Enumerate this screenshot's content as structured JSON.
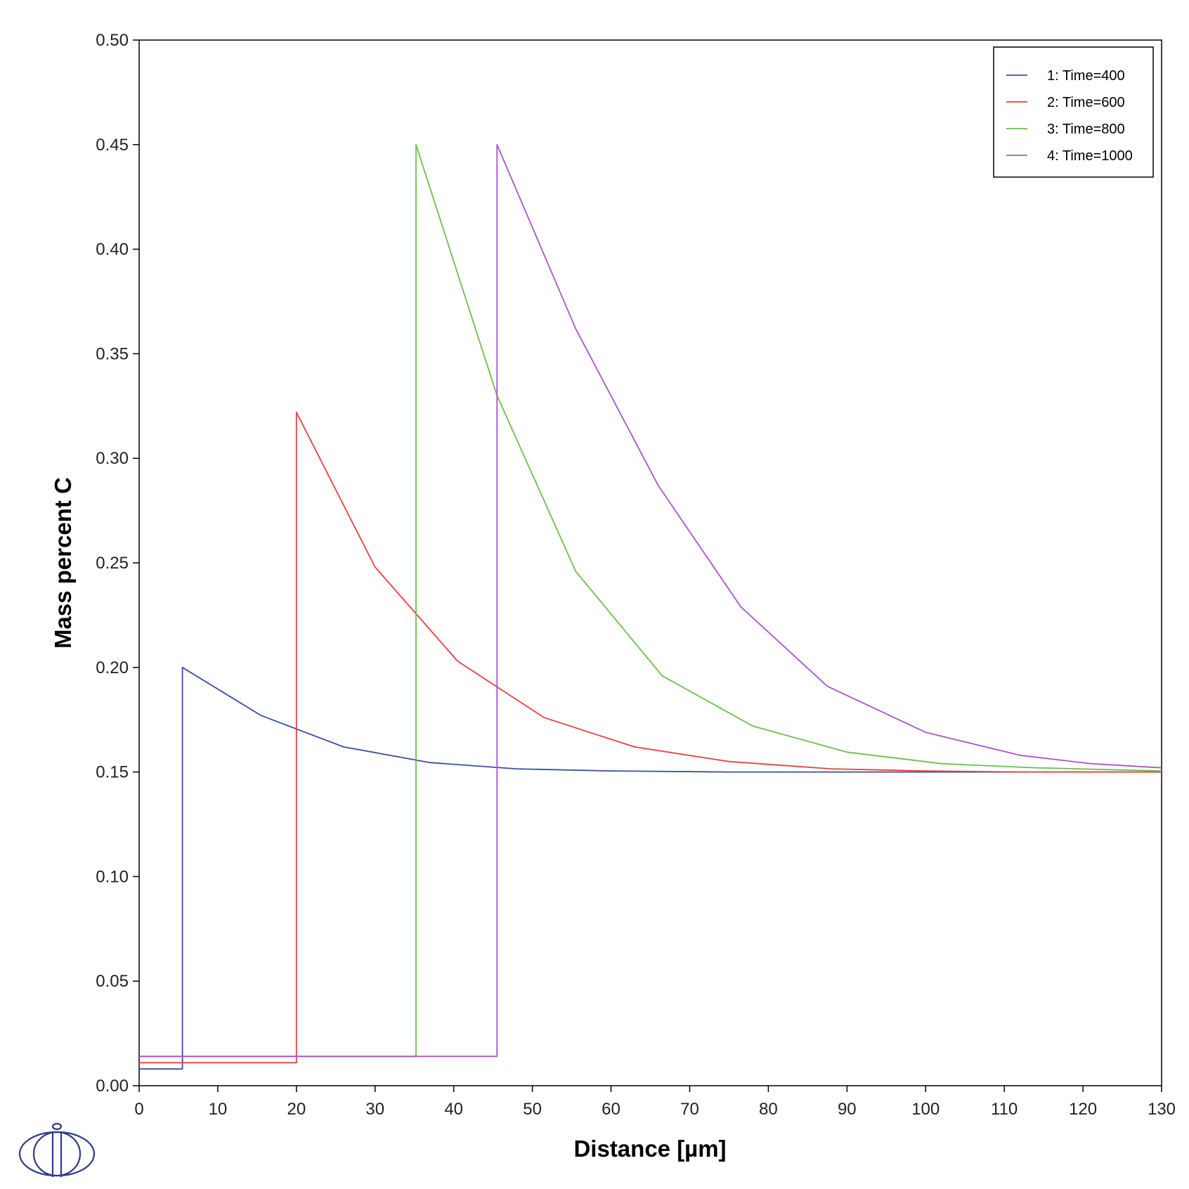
{
  "chart_data": {
    "type": "line",
    "title": "",
    "xlabel": "Distance [µm]",
    "ylabel": "Mass percent C",
    "xlim": [
      0,
      130
    ],
    "ylim": [
      0,
      0.5
    ],
    "xticks": [
      0,
      10,
      20,
      30,
      40,
      50,
      60,
      70,
      80,
      90,
      100,
      110,
      120,
      130
    ],
    "xtick_labels": [
      "0",
      "10",
      "20",
      "30",
      "40",
      "50",
      "60",
      "70",
      "80",
      "90",
      "100",
      "110",
      "120",
      "130"
    ],
    "yticks": [
      0,
      0.05,
      0.1,
      0.15,
      0.2,
      0.25,
      0.3,
      0.35,
      0.4,
      0.45,
      0.5
    ],
    "ytick_labels": [
      "0.00",
      "0.05",
      "0.10",
      "0.15",
      "0.20",
      "0.25",
      "0.30",
      "0.35",
      "0.40",
      "0.45",
      "0.50"
    ],
    "grid": false,
    "legend_position": "top-right",
    "series": [
      {
        "name": "1:  Time=400",
        "color": "#3a4fa0",
        "x": [
          0,
          5.5,
          5.5,
          15.5,
          26,
          37,
          48,
          60,
          75,
          90,
          105,
          130
        ],
        "y": [
          0.008,
          0.008,
          0.2,
          0.177,
          0.162,
          0.1545,
          0.1515,
          0.1505,
          0.15,
          0.15,
          0.15,
          0.15
        ]
      },
      {
        "name": "2:  Time=600",
        "color": "#e84040",
        "x": [
          0,
          20,
          20,
          30,
          40.5,
          51.5,
          63,
          75,
          88,
          100,
          112,
          130
        ],
        "y": [
          0.011,
          0.011,
          0.322,
          0.248,
          0.203,
          0.176,
          0.162,
          0.155,
          0.1515,
          0.1505,
          0.15,
          0.15
        ]
      },
      {
        "name": "3:  Time=800",
        "color": "#6cc04a",
        "x": [
          0,
          35.2,
          35.2,
          45.5,
          55.5,
          66.5,
          78,
          90,
          102,
          114,
          130
        ],
        "y": [
          0.014,
          0.014,
          0.45,
          0.33,
          0.246,
          0.196,
          0.172,
          0.1595,
          0.154,
          0.152,
          0.1505
        ]
      },
      {
        "name": "4:  Time=1000",
        "color": "#a855c8",
        "x": [
          0,
          45.5,
          45.5,
          55.5,
          66,
          76.5,
          87.5,
          100,
          112,
          121,
          130
        ],
        "y": [
          0.014,
          0.014,
          0.45,
          0.362,
          0.287,
          0.229,
          0.191,
          0.169,
          0.158,
          0.154,
          0.152
        ]
      }
    ]
  }
}
